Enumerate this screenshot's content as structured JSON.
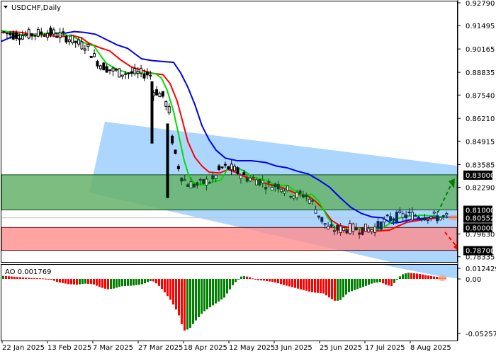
{
  "header": {
    "symbol_title": "USDCHF,Daily"
  },
  "ao_panel": {
    "label": "AO 0.001769"
  },
  "price_axis": {
    "ticks": [
      "0.92790",
      "0.91495",
      "0.90165",
      "0.88835",
      "0.87540",
      "0.86210",
      "0.84915",
      "0.83585",
      "0.82290",
      "0.79630",
      "0.78335"
    ],
    "tagged_levels": [
      {
        "label": "0.83000",
        "value": 0.83
      },
      {
        "label": "0.81000",
        "value": 0.81
      },
      {
        "label": "0.80552",
        "value": 0.80552
      },
      {
        "label": "0.80000",
        "value": 0.8
      },
      {
        "label": "0.78700",
        "value": 0.787
      }
    ]
  },
  "ao_axis": {
    "ticks": [
      "0.012429",
      "0.00",
      "-0.052571"
    ]
  },
  "time_axis": {
    "ticks": [
      "22 Jan 2025",
      "13 Feb 2025",
      "7 Mar 2025",
      "27 Mar 2025",
      "18 Apr 2025",
      "12 May 2025",
      "3 Jun 2025",
      "25 Jun 2025",
      "17 Jul 2025",
      "8 Aug 2025"
    ]
  },
  "colors": {
    "ma_fast": "#00dd00",
    "ma_mid": "#ff0000",
    "ma_slow": "#0000ee",
    "channel": "#99ccff",
    "resistance_zone": "#66b36a",
    "support_zone": "#ff8c8c",
    "ao_up": "#008000",
    "ao_down": "#ff0000",
    "bull_arrow": "#008000",
    "bear_arrow": "#ff0000",
    "tag_bg": "#000000"
  },
  "chart_data": [
    {
      "type": "candlestick",
      "title": "USDCHF,Daily",
      "xlabel": "",
      "ylabel": "",
      "x_ticks": [
        "22 Jan 2025",
        "13 Feb 2025",
        "7 Mar 2025",
        "27 Mar 2025",
        "18 Apr 2025",
        "12 May 2025",
        "3 Jun 2025",
        "25 Jun 2025",
        "17 Jul 2025",
        "8 Aug 2025"
      ],
      "ylim": [
        0.781,
        0.929
      ],
      "approx_close_by_tick": [
        {
          "date": "22 Jan 2025",
          "close": 0.91
        },
        {
          "date": "13 Feb 2025",
          "close": 0.903
        },
        {
          "date": "7 Mar 2025",
          "close": 0.881
        },
        {
          "date": "27 Mar 2025",
          "close": 0.883
        },
        {
          "date": "18 Apr 2025",
          "close": 0.815
        },
        {
          "date": "12 May 2025",
          "close": 0.84
        },
        {
          "date": "3 Jun 2025",
          "close": 0.823
        },
        {
          "date": "25 Jun 2025",
          "close": 0.799
        },
        {
          "date": "17 Jul 2025",
          "close": 0.799
        },
        {
          "date": "8 Aug 2025",
          "close": 0.806
        }
      ],
      "last_price": 0.80552,
      "series": [
        {
          "name": "MA fast (green)",
          "values": [
            0.912,
            0.906,
            0.886,
            0.8825,
            0.825,
            0.829,
            0.818,
            0.799,
            0.803,
            0.807
          ]
        },
        {
          "name": "MA mid (red)",
          "values": [
            0.911,
            0.908,
            0.893,
            0.882,
            0.845,
            0.831,
            0.824,
            0.806,
            0.799,
            0.806
          ]
        },
        {
          "name": "MA slow (blue)",
          "values": [
            0.906,
            0.91,
            0.901,
            0.887,
            0.868,
            0.837,
            0.833,
            0.818,
            0.801,
            0.804
          ]
        }
      ],
      "levels": [
        {
          "name": "resistance zone top",
          "value": 0.83
        },
        {
          "name": "resistance zone bottom",
          "value": 0.81
        },
        {
          "name": "current price",
          "value": 0.80552
        },
        {
          "name": "support zone top",
          "value": 0.8
        },
        {
          "name": "support zone bottom",
          "value": 0.787
        }
      ],
      "annotations": [
        "Descending channel (light blue)",
        "Green dashed arrow up toward 0.83000",
        "Red dashed arrow down toward 0.78700"
      ]
    },
    {
      "type": "bar",
      "title": "AO 0.001769",
      "ylim": [
        -0.052571,
        0.012429
      ],
      "last_value": 0.001769,
      "approx_values_by_tick": [
        {
          "date": "22 Jan 2025",
          "value": 0.002
        },
        {
          "date": "13 Feb 2025",
          "value": -0.006
        },
        {
          "date": "7 Mar 2025",
          "value": -0.013
        },
        {
          "date": "27 Mar 2025",
          "value": -0.018
        },
        {
          "date": "18 Apr 2025",
          "value": -0.05
        },
        {
          "date": "12 May 2025",
          "value": 0.004
        },
        {
          "date": "3 Jun 2025",
          "value": -0.006
        },
        {
          "date": "25 Jun 2025",
          "value": -0.021
        },
        {
          "date": "17 Jul 2025",
          "value": -0.006
        },
        {
          "date": "8 Aug 2025",
          "value": 0.007
        }
      ]
    }
  ]
}
